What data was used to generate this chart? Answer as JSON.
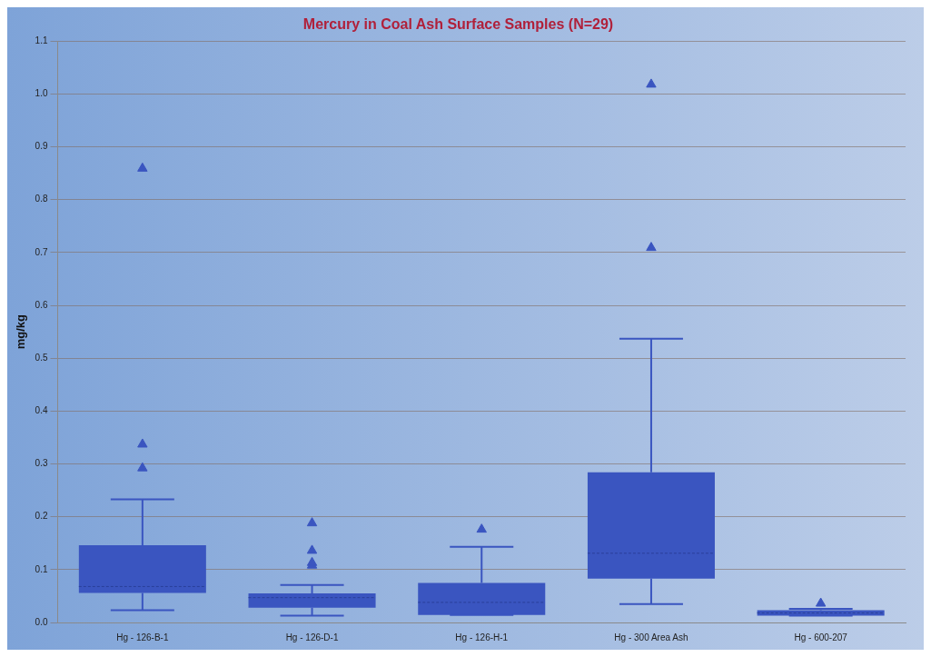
{
  "chart_data": {
    "type": "box",
    "title": "Mercury in Coal Ash Surface Samples (N=29)",
    "ylabel": "mg/kg",
    "categories": [
      "Hg - 126-B-1",
      "Hg - 126-D-1",
      "Hg - 126-H-1",
      "Hg - 300 Area Ash",
      "Hg - 600-207"
    ],
    "color": "#3a55c0",
    "marker": "triangle",
    "grid": "y",
    "legend": false,
    "ylim": [
      0,
      1.1
    ],
    "yticks": [
      {
        "value": 0,
        "label": "0.0"
      },
      0.1,
      0.2,
      0.3,
      0.4,
      0.5,
      0.6,
      0.7,
      0.8,
      0.9,
      {
        "value": 1,
        "label": "1.0"
      },
      1.1
    ],
    "boxes": [
      {
        "low": 0.023,
        "q1": 0.056,
        "median": 0.068,
        "q3": 0.146,
        "high": 0.233,
        "outliers": [
          0.292,
          0.337,
          0.859
        ]
      },
      {
        "low": 0.013,
        "q1": 0.028,
        "median": 0.047,
        "q3": 0.055,
        "high": 0.071,
        "outliers": [
          0.108,
          0.113,
          0.136,
          0.188
        ]
      },
      {
        "low": 0.014,
        "q1": 0.014,
        "median": 0.038,
        "q3": 0.075,
        "high": 0.143,
        "outliers": [
          0.176
        ]
      },
      {
        "low": 0.035,
        "q1": 0.083,
        "median": 0.131,
        "q3": 0.284,
        "high": 0.537,
        "outliers": [
          0.709,
          1.018
        ]
      },
      {
        "low": 0.013,
        "q1": 0.013,
        "median": 0.018,
        "q3": 0.023,
        "high": 0.026,
        "outliers": [
          0.036
        ]
      }
    ]
  }
}
